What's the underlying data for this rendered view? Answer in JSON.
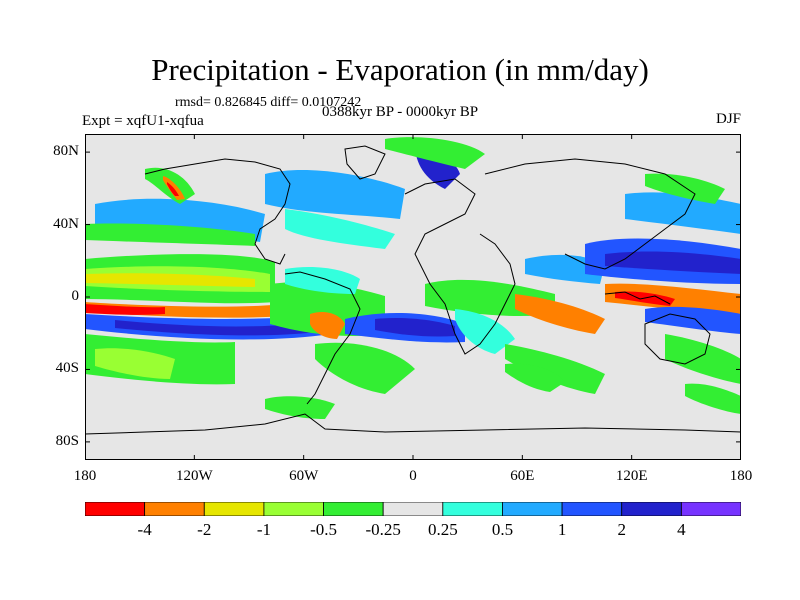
{
  "title": "Precipitation - Evaporation (in mm/day)",
  "stats": "rmsd= 0.826845 diff= 0.0107242",
  "experiment": "Expt = xqfU1-xqfua",
  "period": "0388kyr BP - 0000kyr BP",
  "season": "DJF",
  "colors": {
    "land": "#e6e6e6",
    "coast": "#000000"
  },
  "map_data": {
    "projection": "cylindrical equidistant",
    "lon_range": [
      -180,
      180
    ],
    "lat_range": [
      -90,
      90
    ],
    "lat_ticks": [
      {
        "label": "80N",
        "value": 80
      },
      {
        "label": "40N",
        "value": 40
      },
      {
        "label": "0",
        "value": 0
      },
      {
        "label": "40S",
        "value": -40
      },
      {
        "label": "80S",
        "value": -80
      }
    ],
    "lon_ticks": [
      {
        "label": "180",
        "value": -180
      },
      {
        "label": "120W",
        "value": -120
      },
      {
        "label": "60W",
        "value": -60
      },
      {
        "label": "0",
        "value": 0
      },
      {
        "label": "60E",
        "value": 60
      },
      {
        "label": "120E",
        "value": 120
      },
      {
        "label": "180",
        "value": 180
      }
    ]
  },
  "colorbar": {
    "colors": [
      "#ff0000",
      "#ff8000",
      "#e6e600",
      "#99ff33",
      "#33ee33",
      "#e6e6e6",
      "#33ffdd",
      "#22aaff",
      "#2255ff",
      "#2222cc",
      "#7733ff"
    ],
    "labels": [
      "-4",
      "-2",
      "-1",
      "-0.5",
      "-0.25",
      "0.25",
      "0.5",
      "1",
      "2",
      "4"
    ]
  }
}
